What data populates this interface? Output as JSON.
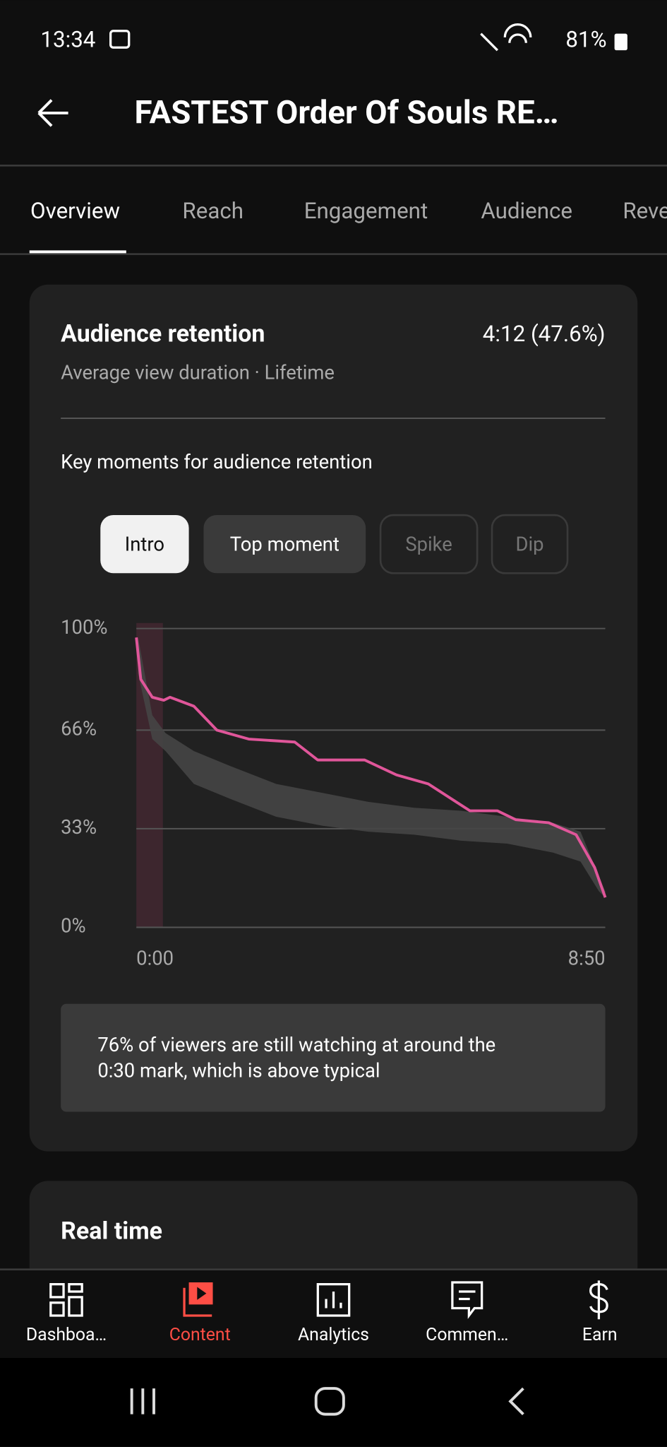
{
  "status": {
    "time": "13:34",
    "battery": "81%"
  },
  "header": {
    "title": "FASTEST Order Of Souls RE…"
  },
  "tabs": {
    "items": [
      "Overview",
      "Reach",
      "Engagement",
      "Audience",
      "Reve"
    ],
    "active": 0
  },
  "card": {
    "title": "Audience retention",
    "value": "4:12 (47.6%)",
    "subtitle": "Average view duration · Lifetime",
    "key_moments_title": "Key moments for audience retention",
    "chips": [
      "Intro",
      "Top moment",
      "Spike",
      "Dip"
    ],
    "insight": [
      "76% of viewers are still watching at around the",
      "0:30 mark, which is above typical"
    ]
  },
  "realtime": {
    "title": "Real time"
  },
  "nav": {
    "items": [
      "Dashboa…",
      "Content",
      "Analytics",
      "Commen…",
      "Earn"
    ],
    "active": 1
  },
  "chart_data": {
    "type": "line",
    "xlim": [
      0,
      530
    ],
    "xticks": [
      {
        "value": 0,
        "label": "0:00"
      },
      {
        "value": 530,
        "label": "8:50"
      }
    ],
    "ylim": [
      0,
      100
    ],
    "yticks": [
      {
        "value": 0,
        "label": "0%"
      },
      {
        "value": 33,
        "label": "33%"
      },
      {
        "value": 66,
        "label": "66%"
      },
      {
        "value": 100,
        "label": "100%"
      }
    ],
    "grid": true,
    "highlight": [
      0,
      30
    ],
    "highlight_color": "#4a2a35",
    "band": {
      "color": "#454545",
      "x": [
        2,
        18,
        33,
        65,
        106,
        158,
        210,
        262,
        314,
        367,
        419,
        471,
        502,
        523,
        530
      ],
      "upper": [
        97,
        71,
        65,
        59,
        54,
        48,
        45,
        42,
        40,
        39,
        37,
        35,
        32,
        17,
        12
      ],
      "lower": [
        85,
        63,
        59,
        48,
        43,
        37,
        34,
        32,
        31,
        29,
        28,
        25,
        22,
        12,
        10
      ]
    },
    "series": [
      {
        "color": "#e0569a",
        "x": [
          0,
          5,
          18,
          31,
          38,
          65,
          91,
          127,
          179,
          205,
          258,
          294,
          330,
          377,
          408,
          429,
          466,
          497,
          518,
          530
        ],
        "values": [
          97,
          83,
          77,
          76,
          77,
          74,
          66,
          63,
          62,
          56,
          56,
          51,
          48,
          39,
          39,
          36,
          35,
          31,
          20,
          10
        ]
      }
    ]
  }
}
